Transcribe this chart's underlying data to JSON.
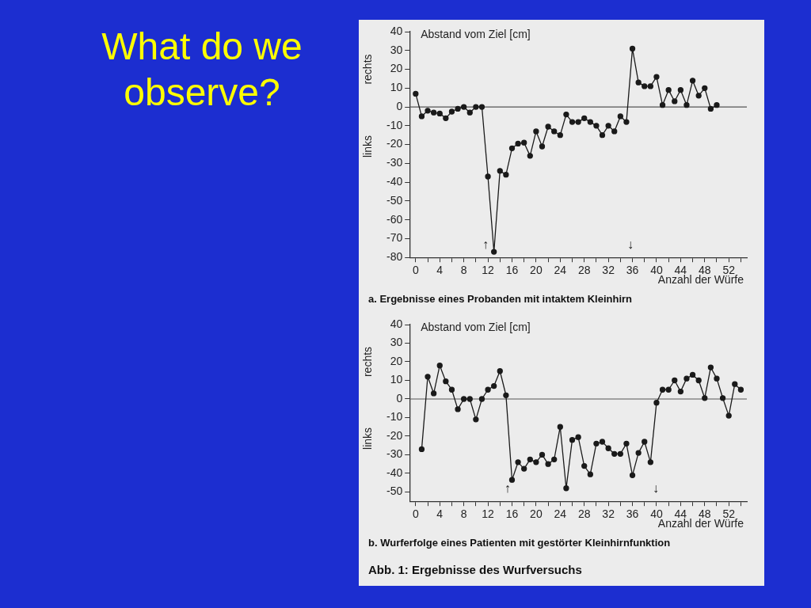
{
  "chart_data": [
    {
      "type": "line",
      "title": "What do we observe?",
      "ylabel": "Abstand vom Ziel [cm]",
      "xlabel": "Anzahl der Würfe",
      "x": [
        0,
        1,
        2,
        3,
        4,
        5,
        6,
        7,
        8,
        9,
        10,
        11,
        12,
        13,
        14,
        15,
        16,
        17,
        18,
        19,
        20,
        21,
        22,
        23,
        24,
        25,
        26,
        27,
        28,
        29,
        30,
        31,
        32,
        33,
        34,
        35,
        36,
        37,
        38,
        39,
        40,
        41,
        42,
        43,
        44,
        45,
        46,
        47,
        48,
        49,
        50
      ],
      "series": [
        {
          "color": "#1a1a1a",
          "values": [
            7,
            -5,
            -2,
            -3,
            -3.5,
            -6,
            -2.5,
            -1,
            0,
            -3,
            0,
            0,
            -37,
            -77,
            -34,
            -36,
            -22,
            -19.5,
            -19,
            -26,
            -13,
            -21,
            -10.5,
            -13,
            -15,
            -4,
            -8,
            -8,
            -6,
            -8,
            -10,
            -15,
            -10,
            -13,
            -5,
            -8,
            31,
            13,
            11,
            11,
            16,
            1,
            9,
            3,
            9,
            1,
            14,
            6,
            10,
            -1,
            1
          ]
        }
      ],
      "xlim": [
        -1,
        55
      ],
      "xticks": [
        0,
        {
          "value": 2,
          "label": null
        },
        4,
        {
          "value": 6,
          "label": null
        },
        8,
        {
          "value": 10,
          "label": null
        },
        12,
        {
          "value": 14,
          "label": null
        },
        16,
        {
          "value": 18,
          "label": null
        },
        20,
        {
          "value": 22,
          "label": null
        },
        24,
        {
          "value": 26,
          "label": null
        },
        28,
        {
          "value": 30,
          "label": null
        },
        32,
        {
          "value": 34,
          "label": null
        },
        36,
        {
          "value": 38,
          "label": null
        },
        40,
        {
          "value": 42,
          "label": null
        },
        44,
        {
          "value": 46,
          "label": null
        },
        48,
        {
          "value": 50,
          "label": null
        },
        52,
        {
          "value": 54,
          "label": null
        }
      ],
      "ylim": [
        -80,
        40
      ],
      "yticks": [
        -80,
        -70,
        -60,
        -50,
        -40,
        -30,
        -20,
        -10,
        0,
        10,
        20,
        30,
        40
      ],
      "ref_lines": [
        {
          "axis": "y",
          "value": 0,
          "color": "#555555"
        }
      ],
      "grid": false,
      "marker": "circle",
      "line_style": "solid",
      "legend": false,
      "annotations": [
        "rechts",
        "links",
        "↑",
        "↓",
        "a. Ergebnisse eines Probanden mit intaktem Kleinhirn"
      ]
    },
    {
      "type": "line",
      "ylabel": "Abstand vom Ziel [cm]",
      "xlabel": "Anzahl der Würfe",
      "x": [
        1,
        2,
        3,
        4,
        5,
        6,
        7,
        8,
        9,
        10,
        11,
        12,
        13,
        14,
        15,
        16,
        17,
        18,
        19,
        20,
        21,
        22,
        23,
        24,
        25,
        26,
        27,
        28,
        29,
        30,
        31,
        32,
        33,
        34,
        35,
        36,
        37,
        38,
        39,
        40,
        41,
        42,
        43,
        44,
        45,
        46,
        47,
        48,
        49,
        50,
        51,
        52,
        53,
        54
      ],
      "series": [
        {
          "color": "#1a1a1a",
          "values": [
            -27,
            12,
            3,
            18,
            9.5,
            5,
            -5.5,
            0,
            0,
            -11,
            0,
            5,
            7,
            15,
            2,
            -43.5,
            -34,
            -37.5,
            -32.5,
            -34,
            -30,
            -35,
            -32.5,
            -15,
            -48,
            -22,
            -20.5,
            -36,
            -40.5,
            -24,
            -23,
            -26.5,
            -29.5,
            -29.5,
            -24,
            -41,
            -29,
            -23,
            -34,
            -2,
            5,
            5,
            10,
            4,
            11,
            13,
            10,
            0.5,
            17,
            11,
            0.5,
            -9,
            8,
            5
          ]
        }
      ],
      "xlim": [
        -1,
        55
      ],
      "xticks": [
        0,
        {
          "value": 2,
          "label": null
        },
        4,
        {
          "value": 6,
          "label": null
        },
        8,
        {
          "value": 10,
          "label": null
        },
        12,
        {
          "value": 14,
          "label": null
        },
        16,
        {
          "value": 18,
          "label": null
        },
        20,
        {
          "value": 22,
          "label": null
        },
        24,
        {
          "value": 26,
          "label": null
        },
        28,
        {
          "value": 30,
          "label": null
        },
        32,
        {
          "value": 34,
          "label": null
        },
        36,
        {
          "value": 38,
          "label": null
        },
        40,
        {
          "value": 42,
          "label": null
        },
        44,
        {
          "value": 46,
          "label": null
        },
        48,
        {
          "value": 50,
          "label": null
        },
        52,
        {
          "value": 54,
          "label": null
        }
      ],
      "ylim": [
        -55,
        40
      ],
      "yticks": [
        -50,
        -40,
        -30,
        -20,
        -10,
        0,
        10,
        20,
        30,
        40
      ],
      "ref_lines": [
        {
          "axis": "y",
          "value": 0,
          "color": "#555555"
        }
      ],
      "grid": false,
      "marker": "circle",
      "line_style": "solid",
      "legend": false,
      "annotations": [
        "rechts",
        "links",
        "↑",
        "↓",
        "b. Wurferfolge eines Patienten mit gestörter Kleinhirnfunktion",
        "Abb. 1: Ergebnisse des Wurfversuchs"
      ]
    }
  ]
}
